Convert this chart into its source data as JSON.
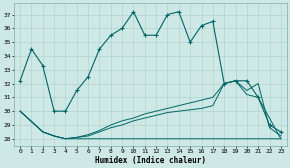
{
  "xlabel": "Humidex (Indice chaleur)",
  "background_color": "#cde8e5",
  "grid_color": "#aacfcc",
  "line_color": "#006666",
  "xlim": [
    -0.5,
    23.5
  ],
  "ylim": [
    27.5,
    37.8
  ],
  "xticks": [
    0,
    1,
    2,
    3,
    4,
    5,
    6,
    7,
    8,
    9,
    10,
    11,
    12,
    13,
    14,
    15,
    16,
    17,
    18,
    19,
    20,
    21,
    22,
    23
  ],
  "yticks": [
    28,
    29,
    30,
    31,
    32,
    33,
    34,
    35,
    36,
    37
  ],
  "series1_x": [
    0,
    1,
    2,
    3,
    4,
    5,
    6,
    7,
    8,
    9,
    10,
    11,
    12,
    13,
    14,
    15,
    16,
    17,
    18,
    19,
    20,
    21,
    22,
    23
  ],
  "series1_y": [
    32.2,
    34.5,
    33.3,
    30.0,
    30.0,
    31.5,
    32.5,
    34.5,
    35.5,
    36.0,
    37.2,
    35.5,
    35.5,
    37.0,
    37.2,
    35.0,
    36.2,
    36.5,
    32.0,
    32.2,
    32.2,
    31.0,
    29.0,
    28.5
  ],
  "series2_x": [
    0,
    2,
    3,
    4,
    5,
    6,
    7,
    8,
    9,
    10,
    11,
    12,
    13,
    14,
    15,
    16,
    17,
    18,
    19,
    20,
    21,
    22,
    23
  ],
  "series2_y": [
    30.0,
    28.5,
    28.2,
    28.0,
    28.1,
    28.2,
    28.5,
    28.8,
    29.0,
    29.3,
    29.5,
    29.7,
    29.9,
    30.0,
    30.1,
    30.2,
    30.4,
    32.0,
    32.2,
    31.5,
    32.0,
    28.8,
    28.2
  ],
  "series3_x": [
    0,
    2,
    3,
    4,
    5,
    6,
    7,
    8,
    9,
    10,
    11,
    12,
    13,
    14,
    15,
    16,
    17,
    18,
    19,
    20,
    21,
    22,
    23
  ],
  "series3_y": [
    30.0,
    28.5,
    28.2,
    28.0,
    28.1,
    28.3,
    28.6,
    29.0,
    29.3,
    29.5,
    29.8,
    30.0,
    30.2,
    30.4,
    30.6,
    30.8,
    31.0,
    32.0,
    32.2,
    31.2,
    31.0,
    29.5,
    28.0
  ],
  "series4_x": [
    0,
    2,
    3,
    4,
    5,
    6,
    7,
    8,
    9,
    10,
    11,
    12,
    13,
    14,
    15,
    16,
    17,
    18,
    19,
    20,
    21,
    22,
    23
  ],
  "series4_y": [
    30.0,
    28.5,
    28.2,
    28.0,
    28.0,
    28.0,
    28.0,
    28.0,
    28.0,
    28.0,
    28.0,
    28.0,
    28.0,
    28.0,
    28.0,
    28.0,
    28.0,
    28.0,
    28.0,
    28.0,
    28.0,
    28.0,
    28.0
  ]
}
